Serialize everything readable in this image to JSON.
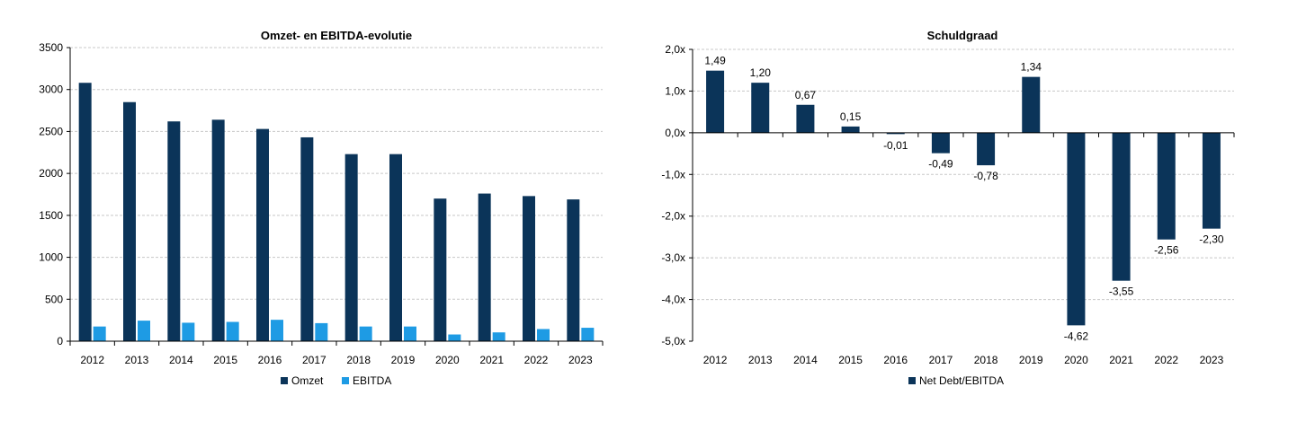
{
  "chart_data": [
    {
      "type": "bar",
      "title": "Omzet- en EBITDA-evolutie",
      "xlabel": "",
      "ylabel": "",
      "categories": [
        "2012",
        "2013",
        "2014",
        "2015",
        "2016",
        "2017",
        "2018",
        "2019",
        "2020",
        "2021",
        "2022",
        "2023"
      ],
      "series": [
        {
          "name": "Omzet",
          "color": "#0b3459",
          "values": [
            3080,
            2850,
            2620,
            2640,
            2530,
            2430,
            2230,
            2230,
            1700,
            1760,
            1730,
            1690
          ]
        },
        {
          "name": "EBITDA",
          "color": "#1e9be4",
          "values": [
            175,
            245,
            220,
            230,
            255,
            215,
            175,
            175,
            80,
            105,
            145,
            160
          ]
        }
      ],
      "ylim": [
        0,
        3500
      ],
      "yticks": [
        0,
        500,
        1000,
        1500,
        2000,
        2500,
        3000,
        3500
      ],
      "ytick_labels": [
        "0",
        "500",
        "1000",
        "1500",
        "2000",
        "2500",
        "3000",
        "3500"
      ],
      "grid": true,
      "legend": "bottom"
    },
    {
      "type": "bar",
      "title": "Schuldgraad",
      "xlabel": "",
      "ylabel": "",
      "categories": [
        "2012",
        "2013",
        "2014",
        "2015",
        "2016",
        "2017",
        "2018",
        "2019",
        "2020",
        "2021",
        "2022",
        "2023"
      ],
      "series": [
        {
          "name": "Net Debt/EBITDA",
          "color": "#0b3459",
          "values": [
            1.49,
            1.2,
            0.67,
            0.15,
            -0.01,
            -0.49,
            -0.78,
            1.34,
            -4.62,
            -3.55,
            -2.56,
            -2.3
          ],
          "data_labels": [
            "1,49",
            "1,20",
            "0,67",
            "0,15",
            "-0,01",
            "-0,49",
            "-0,78",
            "1,34",
            "-4,62",
            "-3,55",
            "-2,56",
            "-2,30"
          ]
        }
      ],
      "ylim": [
        -5,
        2
      ],
      "yticks": [
        2,
        1,
        0,
        -1,
        -2,
        -3,
        -4,
        -5
      ],
      "ytick_labels": [
        "2,0x",
        "1,0x",
        "0,0x",
        "-1,0x",
        "-2,0x",
        "-3,0x",
        "-4,0x",
        "-5,0x"
      ],
      "grid": true,
      "legend": "bottom"
    }
  ]
}
